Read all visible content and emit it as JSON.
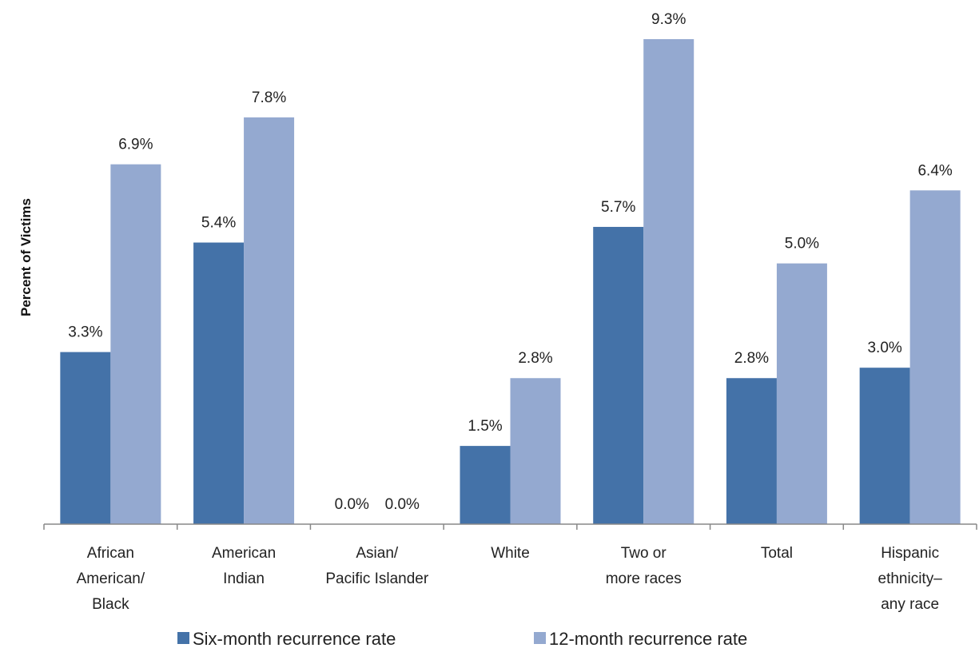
{
  "chart_data": {
    "type": "bar",
    "categories": [
      [
        "African",
        "American/",
        "Black"
      ],
      [
        "American",
        "Indian"
      ],
      [
        "Asian/",
        "Pacific Islander"
      ],
      [
        "White"
      ],
      [
        "Two or",
        "more races"
      ],
      [
        "Total"
      ],
      [
        "Hispanic",
        "ethnicity–",
        "any race"
      ]
    ],
    "series": [
      {
        "name": "Six-month recurrence rate",
        "color": "#4472a8",
        "values": [
          3.3,
          5.4,
          0.0,
          1.5,
          5.7,
          2.8,
          3.0
        ],
        "labels": [
          "3.3%",
          "5.4%",
          "0.0%",
          "1.5%",
          "5.7%",
          "2.8%",
          "3.0%"
        ]
      },
      {
        "name": "12-month recurrence rate",
        "color": "#94a9d0",
        "values": [
          6.9,
          7.8,
          0.0,
          2.8,
          9.3,
          5.0,
          6.4
        ],
        "labels": [
          "6.9%",
          "7.8%",
          "0.0%",
          "2.8%",
          "9.3%",
          "5.0%",
          "6.4%"
        ]
      }
    ],
    "title": "",
    "xlabel": "",
    "ylabel": "Percent of  Victims",
    "ylim": [
      0,
      9.3
    ],
    "grid": false,
    "legend": "bottom"
  }
}
